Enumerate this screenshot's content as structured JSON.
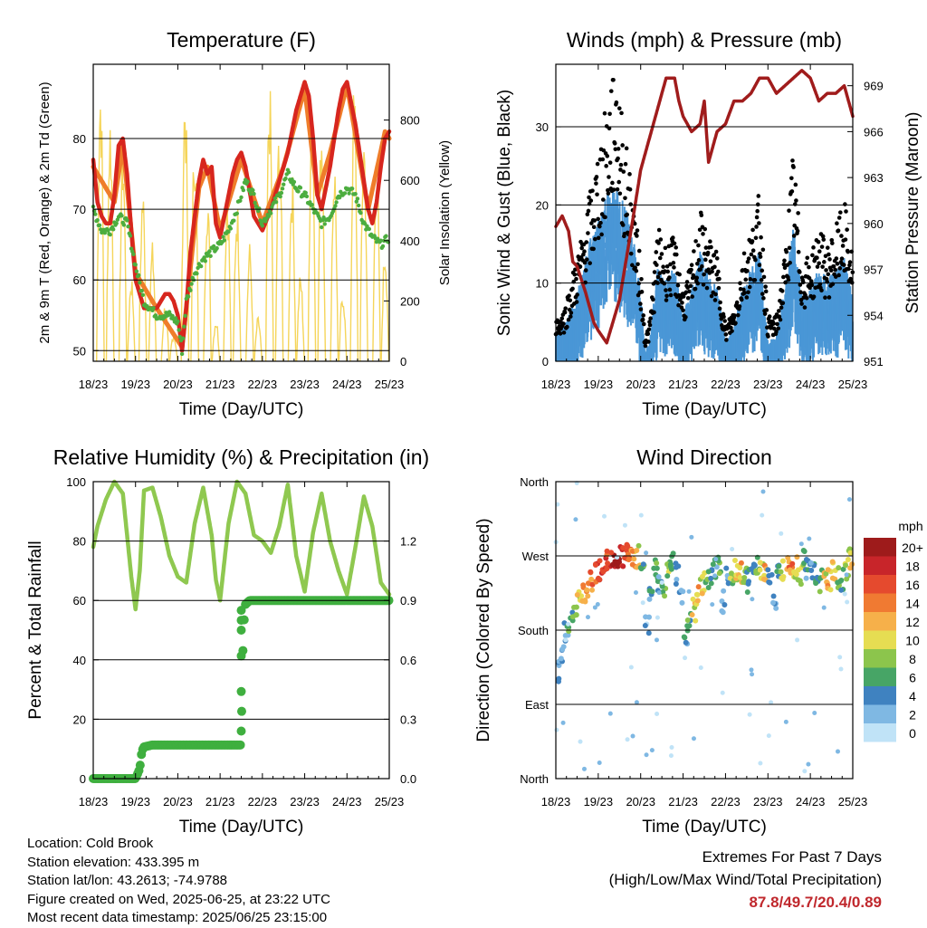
{
  "chart_data": [
    {
      "type": "line",
      "title": "Temperature (F)",
      "xlabel": "Time (Day/UTC)",
      "ylabel": "2m & 9m T (Red, Orange) & 2m Td (Green)",
      "y2label": "Solar Insolation (Yellow)",
      "x_ticks": [
        "18/23",
        "19/23",
        "20/23",
        "21/23",
        "22/23",
        "23/23",
        "24/23",
        "25/23"
      ],
      "xlim": [
        0,
        7
      ],
      "ylim": [
        48.5,
        90.5
      ],
      "yticks": [
        50,
        60,
        70,
        80
      ],
      "y2lim": [
        0,
        985
      ],
      "y2ticks": [
        0,
        200,
        400,
        600,
        800
      ],
      "grid": "y",
      "series": [
        {
          "color": "#d7261e",
          "axis": "left",
          "x": [
            0,
            0.1,
            0.2,
            0.3,
            0.4,
            0.5,
            0.6,
            0.7,
            0.8,
            0.9,
            1.0,
            1.2,
            1.5,
            1.7,
            1.8,
            1.9,
            2.0,
            2.1,
            2.2,
            2.3,
            2.5,
            2.6,
            2.7,
            2.8,
            2.9,
            3.0,
            3.1,
            3.2,
            3.3,
            3.4,
            3.5,
            3.6,
            3.8,
            4.0,
            4.2,
            4.4,
            4.6,
            4.8,
            5.0,
            5.1,
            5.2,
            5.3,
            5.4,
            5.6,
            5.8,
            5.9,
            6.0,
            6.2,
            6.4,
            6.5,
            6.6,
            6.7,
            6.8,
            6.9,
            7.0
          ],
          "values": [
            77,
            71,
            69,
            68,
            68,
            72,
            79,
            80,
            75,
            67,
            60,
            56,
            56,
            58,
            58,
            57,
            55,
            50,
            56,
            64,
            74,
            77,
            75,
            76,
            68,
            66,
            69,
            72,
            75,
            77,
            78,
            76,
            69,
            67,
            70,
            74,
            78,
            84,
            88,
            86,
            80,
            72,
            70,
            76,
            84,
            87,
            88,
            82,
            74,
            70,
            68,
            71,
            76,
            80,
            81
          ]
        },
        {
          "color": "#ef7d2a",
          "axis": "left",
          "x": [
            0,
            0.5,
            0.7,
            1.0,
            1.5,
            2.1,
            2.5,
            2.7,
            3.0,
            3.5,
            4.0,
            4.5,
            5.0,
            5.3,
            5.6,
            6.0,
            6.5,
            6.9,
            7.0
          ],
          "values": [
            76,
            71,
            79,
            61,
            56,
            50.5,
            73,
            76,
            67,
            77,
            68,
            76,
            87,
            72,
            78,
            87.5,
            70,
            81,
            80
          ]
        },
        {
          "color": "#4cad3f",
          "axis": "left",
          "x": [
            0,
            0.2,
            0.4,
            0.6,
            0.8,
            1.0,
            1.2,
            1.5,
            1.8,
            2.0,
            2.1,
            2.2,
            2.4,
            2.6,
            2.8,
            3.0,
            3.2,
            3.4,
            3.6,
            3.8,
            4.0,
            4.2,
            4.4,
            4.6,
            4.8,
            5.0,
            5.2,
            5.4,
            5.6,
            5.8,
            6.0,
            6.2,
            6.4,
            6.6,
            6.8,
            7.0
          ],
          "values": [
            70,
            67,
            67,
            69,
            68,
            62,
            57,
            55,
            55,
            54,
            50,
            57,
            61,
            63,
            64,
            65,
            67,
            70,
            74,
            72,
            68,
            70,
            72,
            75,
            73,
            72,
            70,
            68,
            69,
            72,
            73,
            72,
            68,
            66,
            65,
            66
          ]
        },
        {
          "color": "#f5d55a",
          "axis": "right",
          "style": "diurnal-bursts",
          "x": [
            0.17,
            0.4,
            0.7,
            0.9,
            1.17,
            1.4,
            1.7,
            1.9,
            2.17,
            2.4,
            2.7,
            2.9,
            3.17,
            3.4,
            3.7,
            3.9,
            4.17,
            4.4,
            4.7,
            4.9,
            5.17,
            5.4,
            5.7,
            5.9,
            6.17,
            6.4,
            6.7,
            6.9
          ],
          "values": [
            980,
            850,
            750,
            300,
            600,
            400,
            200,
            100,
            950,
            800,
            600,
            150,
            600,
            550,
            400,
            150,
            950,
            820,
            650,
            300,
            950,
            850,
            700,
            250,
            950,
            800,
            700,
            400
          ]
        }
      ]
    },
    {
      "type": "scatter",
      "title": "Winds (mph) & Pressure (mb)",
      "xlabel": "Time (Day/UTC)",
      "ylabel": "Sonic Wind & Gust (Blue, Black)",
      "y2label": "Station Pressure (Maroon)",
      "x_ticks": [
        "18/23",
        "19/23",
        "20/23",
        "21/23",
        "22/23",
        "23/23",
        "24/23",
        "25/23"
      ],
      "xlim": [
        0,
        7
      ],
      "ylim": [
        0,
        38
      ],
      "yticks": [
        0,
        10,
        20,
        30
      ],
      "y2lim": [
        951,
        970.4
      ],
      "y2ticks": [
        951,
        954,
        957,
        960,
        963,
        966,
        969
      ],
      "grid": "y",
      "series": [
        {
          "color": "#4a97d6",
          "axis": "left",
          "style": "band",
          "x": [
            0,
            0.2,
            0.4,
            0.6,
            0.8,
            1.0,
            1.2,
            1.4,
            1.6,
            1.8,
            2.0,
            2.1,
            2.2,
            2.4,
            2.6,
            2.8,
            3.0,
            3.2,
            3.4,
            3.6,
            3.8,
            4.0,
            4.2,
            4.4,
            4.6,
            4.8,
            5.0,
            5.2,
            5.4,
            5.6,
            5.8,
            6.0,
            6.2,
            6.4,
            6.6,
            6.8,
            7.0
          ],
          "values": [
            3,
            4,
            6,
            9,
            13,
            15,
            18,
            19,
            17,
            14,
            8,
            1,
            2,
            10,
            9,
            10,
            5,
            8,
            12,
            9,
            8,
            2,
            4,
            8,
            10,
            12,
            2,
            3,
            8,
            15,
            7,
            8,
            10,
            9,
            10,
            11,
            7
          ]
        },
        {
          "color": "#000000",
          "axis": "left",
          "style": "band",
          "x": [
            0,
            0.2,
            0.4,
            0.6,
            0.8,
            1.0,
            1.2,
            1.4,
            1.6,
            1.8,
            2.0,
            2.1,
            2.2,
            2.4,
            2.6,
            2.8,
            3.0,
            3.2,
            3.4,
            3.6,
            3.8,
            4.0,
            4.2,
            4.4,
            4.6,
            4.8,
            5.0,
            5.2,
            5.4,
            5.6,
            5.8,
            6.0,
            6.2,
            6.4,
            6.6,
            6.8,
            7.0
          ],
          "values": [
            5,
            6,
            10,
            14,
            19,
            24,
            29,
            35,
            26,
            20,
            11,
            3,
            4,
            15,
            13,
            14,
            8,
            11,
            17,
            14,
            12,
            4,
            6,
            12,
            15,
            19,
            5,
            5,
            12,
            24,
            11,
            12,
            15,
            13,
            15,
            18,
            12
          ]
        },
        {
          "color": "#a01c1c",
          "axis": "right",
          "style": "line",
          "x": [
            0,
            0.15,
            0.3,
            0.4,
            0.5,
            0.7,
            0.9,
            1.0,
            1.2,
            1.5,
            1.8,
            2.0,
            2.2,
            2.4,
            2.6,
            2.8,
            2.9,
            3.0,
            3.2,
            3.4,
            3.5,
            3.6,
            3.8,
            4.0,
            4.2,
            4.4,
            4.6,
            4.8,
            5.0,
            5.2,
            5.4,
            5.6,
            5.8,
            6.0,
            6.2,
            6.4,
            6.6,
            6.8,
            7.0
          ],
          "values": [
            959.8,
            960.5,
            959.5,
            957.5,
            957.2,
            955.5,
            953.5,
            953,
            952.2,
            955,
            960,
            963.5,
            965.5,
            967.5,
            969.5,
            969.5,
            968,
            967,
            966,
            966.5,
            968,
            964,
            966,
            966.5,
            968,
            968,
            968.5,
            969.5,
            969.5,
            968.5,
            969,
            969.5,
            970,
            969.5,
            968,
            968.5,
            968.5,
            969,
            967
          ]
        }
      ]
    },
    {
      "type": "line",
      "title": "Relative Humidity (%) & Precipitation (in)",
      "xlabel": "Time (Day/UTC)",
      "ylabel": "Percent & Total Rainfall",
      "x_ticks": [
        "18/23",
        "19/23",
        "20/23",
        "21/23",
        "22/23",
        "23/23",
        "24/23",
        "25/23"
      ],
      "xlim": [
        0,
        7
      ],
      "ylim": [
        0,
        100
      ],
      "yticks": [
        0,
        20,
        40,
        60,
        80,
        100
      ],
      "y2lim": [
        0,
        1.5
      ],
      "y2ticks": [
        "0.0",
        "0.3",
        "0.6",
        "0.9",
        "1.2"
      ],
      "grid": "y",
      "series": [
        {
          "color": "#8fc850",
          "axis": "left",
          "x": [
            0,
            0.1,
            0.3,
            0.5,
            0.7,
            0.9,
            1.0,
            1.1,
            1.2,
            1.4,
            1.6,
            1.8,
            2.0,
            2.2,
            2.4,
            2.6,
            2.8,
            2.9,
            3.0,
            3.2,
            3.4,
            3.6,
            3.8,
            4.0,
            4.2,
            4.4,
            4.6,
            4.8,
            5.0,
            5.2,
            5.4,
            5.6,
            5.8,
            6.0,
            6.2,
            6.4,
            6.6,
            6.8,
            7.0
          ],
          "values": [
            78,
            85,
            94,
            100,
            96,
            68,
            57,
            70,
            97,
            98,
            88,
            75,
            68,
            66,
            86,
            98,
            82,
            67,
            60,
            86,
            100,
            96,
            82,
            80,
            76,
            85,
            99,
            75,
            63,
            83,
            96,
            80,
            70,
            62,
            78,
            95,
            85,
            66,
            62
          ]
        },
        {
          "color": "#3faf3f",
          "axis": "right",
          "style": "dots",
          "x": [
            0,
            0.6,
            1.0,
            1.1,
            1.15,
            1.2,
            1.4,
            1.6,
            2.0,
            2.5,
            3.0,
            3.5,
            3.5,
            3.52,
            3.55,
            3.6,
            3.7,
            4.0,
            5.0,
            6.0,
            7.0
          ],
          "values": [
            0,
            0,
            0,
            0.05,
            0.14,
            0.16,
            0.17,
            0.17,
            0.17,
            0.17,
            0.17,
            0.17,
            0.24,
            0.44,
            0.75,
            0.88,
            0.9,
            0.9,
            0.9,
            0.9,
            0.9
          ]
        }
      ]
    },
    {
      "type": "scatter",
      "title": "Wind Direction",
      "xlabel": "Time (Day/UTC)",
      "ylabel": "Direction (Colored By Speed)",
      "x_ticks": [
        "18/23",
        "19/23",
        "20/23",
        "21/23",
        "22/23",
        "23/23",
        "24/23",
        "25/23"
      ],
      "xlim": [
        0,
        7
      ],
      "ylim": [
        0,
        360
      ],
      "yticks": [
        "North",
        "East",
        "South",
        "West",
        "North"
      ],
      "grid": "y",
      "colorbar": {
        "title": "mph",
        "labels": [
          "20+",
          "18",
          "16",
          "14",
          "12",
          "10",
          "8",
          "6",
          "4",
          "2",
          "0"
        ],
        "colors": [
          "#9e1b1b",
          "#c8252a",
          "#e54a2e",
          "#f07a32",
          "#f6b04a",
          "#e6dd52",
          "#8cc54c",
          "#47a566",
          "#3f82c0",
          "#7fb8e3",
          "#c0e3f7"
        ]
      },
      "series": [
        {
          "name": "",
          "x": [
            0.05,
            0.15,
            0.25,
            0.35,
            0.45,
            0.55,
            0.65,
            0.75,
            0.85,
            0.95,
            1.05,
            1.15,
            1.25,
            1.35,
            1.45,
            1.55,
            1.65,
            1.75,
            1.85,
            1.95,
            2.05,
            2.15,
            2.25,
            2.35,
            2.45,
            2.55,
            2.65,
            2.75,
            2.85,
            2.95,
            3.05,
            3.15,
            3.25,
            3.35,
            3.45,
            3.55,
            3.65,
            3.75,
            3.85,
            3.95,
            4.05,
            4.15,
            4.25,
            4.35,
            4.45,
            4.55,
            4.65,
            4.75,
            4.85,
            4.95,
            5.05,
            5.15,
            5.25,
            5.35,
            5.45,
            5.55,
            5.65,
            5.75,
            5.85,
            5.95,
            6.05,
            6.15,
            6.25,
            6.35,
            6.45,
            6.55,
            6.65,
            6.75,
            6.85,
            6.95
          ],
          "values": [
            130,
            150,
            175,
            190,
            205,
            215,
            225,
            235,
            240,
            250,
            255,
            262,
            262,
            268,
            270,
            270,
            272,
            270,
            268,
            270,
            260,
            185,
            225,
            255,
            240,
            230,
            255,
            265,
            250,
            225,
            175,
            190,
            205,
            220,
            235,
            240,
            250,
            255,
            260,
            215,
            245,
            250,
            255,
            250,
            245,
            240,
            252,
            260,
            255,
            250,
            245,
            210,
            248,
            255,
            262,
            260,
            255,
            248,
            265,
            255,
            250,
            245,
            240,
            238,
            242,
            250,
            245,
            240,
            255,
            268
          ],
          "speeds": [
            2,
            3,
            4,
            6,
            8,
            10,
            12,
            14,
            14,
            16,
            18,
            18,
            16,
            18,
            20,
            18,
            16,
            14,
            12,
            10,
            6,
            2,
            4,
            6,
            4,
            6,
            8,
            6,
            4,
            2,
            4,
            6,
            10,
            12,
            10,
            8,
            6,
            4,
            6,
            2,
            4,
            8,
            10,
            12,
            8,
            6,
            4,
            8,
            10,
            12,
            4,
            2,
            6,
            8,
            12,
            14,
            10,
            8,
            6,
            4,
            4,
            6,
            8,
            10,
            12,
            10,
            8,
            6,
            8,
            10
          ]
        }
      ]
    }
  ],
  "footer": {
    "location": "Location: Cold Brook",
    "elevation": "Station elevation: 433.395 m",
    "latlon": "Station lat/lon: 43.2613; -74.9788",
    "created": "Figure created on Wed, 2025-06-25, at 23:22 UTC",
    "recent": "Most recent data timestamp: 2025/06/25 23:15:00"
  },
  "extremes": {
    "title": "Extremes For Past 7 Days",
    "subtitle": "(High/Low/Max Wind/Total Precipitation)",
    "values": "87.8/49.7/20.4/0.89"
  }
}
